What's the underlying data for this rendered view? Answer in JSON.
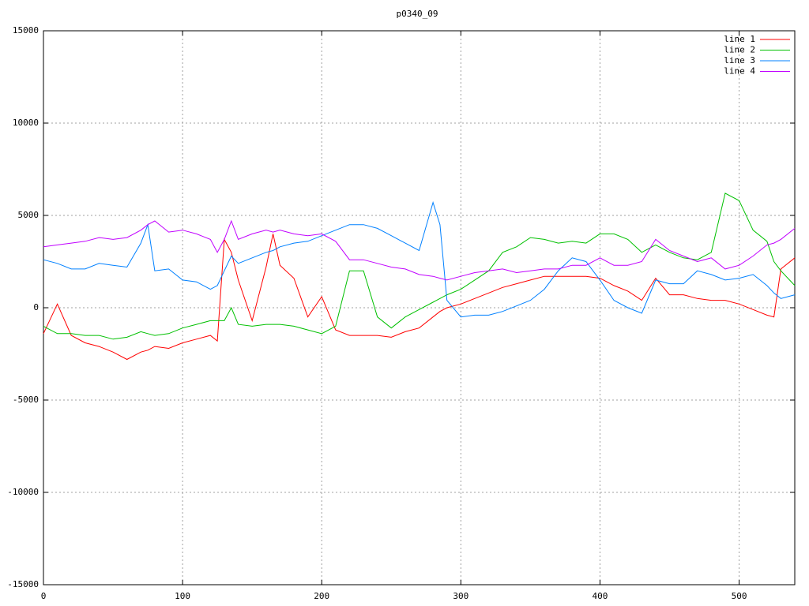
{
  "chart_data": {
    "type": "line",
    "title": "p0340_09",
    "x": [
      0,
      10,
      20,
      30,
      40,
      50,
      60,
      70,
      75,
      80,
      90,
      100,
      110,
      120,
      125,
      130,
      135,
      140,
      150,
      160,
      165,
      170,
      180,
      190,
      200,
      210,
      220,
      230,
      240,
      250,
      260,
      270,
      280,
      285,
      290,
      300,
      310,
      320,
      330,
      340,
      350,
      360,
      370,
      380,
      390,
      400,
      410,
      420,
      430,
      440,
      450,
      460,
      470,
      480,
      490,
      500,
      510,
      520,
      525,
      530,
      540
    ],
    "series": [
      {
        "name": "line 1",
        "color": "#ff0000",
        "values": [
          -1400,
          200,
          -1500,
          -1900,
          -2100,
          -2400,
          -2800,
          -2400,
          -2300,
          -2100,
          -2200,
          -1900,
          -1700,
          -1500,
          -1800,
          3700,
          3000,
          1500,
          -700,
          2200,
          4000,
          2300,
          1600,
          -500,
          600,
          -1200,
          -1500,
          -1500,
          -1500,
          -1600,
          -1300,
          -1100,
          -500,
          -200,
          0,
          200,
          500,
          800,
          1100,
          1300,
          1500,
          1700,
          1700,
          1700,
          1700,
          1600,
          1200,
          900,
          400,
          1600,
          700,
          700,
          500,
          400,
          400,
          200,
          -100,
          -400,
          -500,
          2100,
          2700
        ]
      },
      {
        "name": "line 2",
        "color": "#00c000",
        "values": [
          -1000,
          -1400,
          -1400,
          -1500,
          -1500,
          -1700,
          -1600,
          -1300,
          -1400,
          -1500,
          -1400,
          -1100,
          -900,
          -700,
          -700,
          -700,
          0,
          -900,
          -1000,
          -900,
          -900,
          -900,
          -1000,
          -1200,
          -1400,
          -1000,
          2000,
          2000,
          -500,
          -1100,
          -500,
          -100,
          300,
          500,
          700,
          1000,
          1500,
          2000,
          3000,
          3300,
          3800,
          3700,
          3500,
          3600,
          3500,
          4000,
          4000,
          3700,
          3000,
          3400,
          3000,
          2700,
          2600,
          3000,
          6200,
          5800,
          4200,
          3600,
          2500,
          2000,
          1200
        ]
      },
      {
        "name": "line 3",
        "color": "#0080ff",
        "values": [
          2600,
          2400,
          2100,
          2100,
          2400,
          2300,
          2200,
          3500,
          4500,
          2000,
          2100,
          1500,
          1400,
          1000,
          1200,
          2000,
          2800,
          2400,
          2700,
          3000,
          3100,
          3300,
          3500,
          3600,
          3900,
          4200,
          4500,
          4500,
          4300,
          3900,
          3500,
          3100,
          5700,
          4500,
          400,
          -500,
          -400,
          -400,
          -200,
          100,
          400,
          1000,
          2000,
          2700,
          2500,
          1500,
          400,
          0,
          -300,
          1500,
          1300,
          1300,
          2000,
          1800,
          1500,
          1600,
          1800,
          1200,
          800,
          500,
          700
        ]
      },
      {
        "name": "line 4",
        "color": "#c000ff",
        "values": [
          3300,
          3400,
          3500,
          3600,
          3800,
          3700,
          3800,
          4200,
          4500,
          4700,
          4100,
          4200,
          4000,
          3700,
          3000,
          3700,
          4700,
          3700,
          4000,
          4200,
          4100,
          4200,
          4000,
          3900,
          4000,
          3600,
          2600,
          2600,
          2400,
          2200,
          2100,
          1800,
          1700,
          1600,
          1500,
          1700,
          1900,
          2000,
          2100,
          1900,
          2000,
          2100,
          2100,
          2300,
          2300,
          2700,
          2300,
          2300,
          2500,
          3700,
          3100,
          2800,
          2500,
          2700,
          2100,
          2300,
          2800,
          3400,
          3500,
          3700,
          4300
        ]
      }
    ],
    "xlim": [
      0,
      540
    ],
    "ylim": [
      -15000,
      15000
    ],
    "xticks": [
      0,
      100,
      200,
      300,
      400,
      500
    ],
    "yticks": [
      -15000,
      -10000,
      -5000,
      0,
      5000,
      10000,
      15000
    ],
    "grid": true,
    "legend": "top-right"
  }
}
